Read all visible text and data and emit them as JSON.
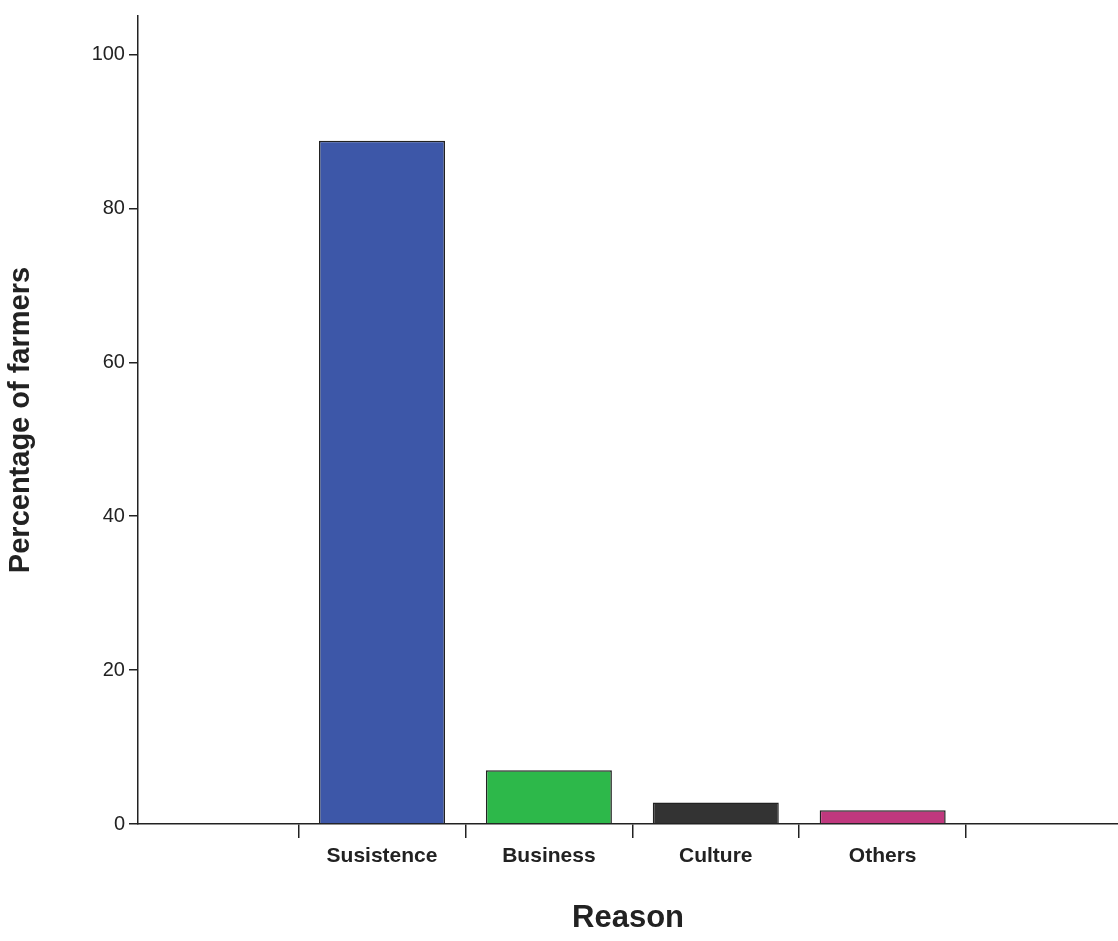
{
  "chart_data": {
    "type": "bar",
    "xlabel": "Reason",
    "ylabel": "Percentage of farmers",
    "categories": [
      "Susistence",
      "Business",
      "Culture",
      "Others"
    ],
    "values": [
      88.8,
      7.0,
      2.8,
      1.8
    ],
    "colors": [
      "#3d57a8",
      "#2db84a",
      "#333333",
      "#c0387e"
    ],
    "ylim": [
      0,
      105
    ],
    "yticks": [
      0,
      20,
      40,
      60,
      80,
      100
    ],
    "grid": false,
    "legend": false
  }
}
